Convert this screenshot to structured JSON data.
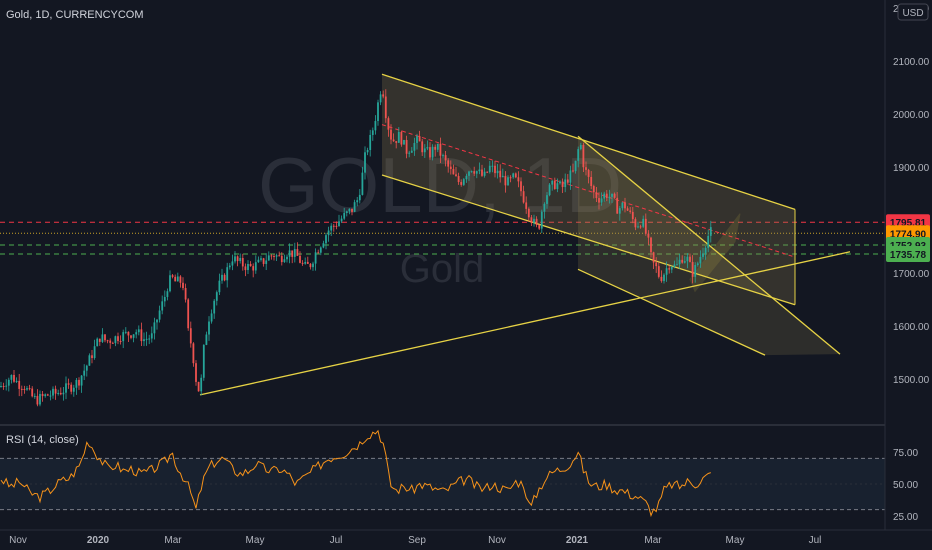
{
  "header": {
    "symbol_line": "Gold, 1D, CURRENCYCOM",
    "currency": "USD",
    "watermark_symbol": "GOLD, 1D",
    "watermark_name": "Gold"
  },
  "rsi": {
    "label": "RSI (14, close)"
  },
  "colors": {
    "background": "#131722",
    "candle_up": "#26a69a",
    "candle_down": "#ef5350",
    "drawing": "#e6d245",
    "rsi_line": "#f7931a",
    "tag_red": "#f23645",
    "tag_orange": "#ff9800",
    "tag_green": "#4caf50"
  },
  "chart_data": {
    "type": "candlestick",
    "price_axis": {
      "ticks": [
        "2200.00",
        "2100.00",
        "2000.00",
        "1900.00",
        "1800.00",
        "1700.00",
        "1600.00",
        "1500.00"
      ],
      "range": [
        1410,
        2235
      ]
    },
    "price_levels": [
      {
        "label": "1795.81",
        "value": 1795.81,
        "style": "red-dashed"
      },
      {
        "label": "1774.90",
        "value": 1774.9,
        "style": "orange-dotted"
      },
      {
        "label": "1752.93",
        "value": 1752.93,
        "style": "green-dashed"
      },
      {
        "label": "1735.78",
        "value": 1735.78,
        "style": "green-dashed"
      }
    ],
    "time_axis": [
      "Nov",
      "2020",
      "Mar",
      "May",
      "Jul",
      "Sep",
      "Nov",
      "2021",
      "Mar",
      "May",
      "Jul"
    ],
    "price_path": [
      [
        0,
        1485
      ],
      [
        5,
        1495
      ],
      [
        12,
        1505
      ],
      [
        18,
        1492
      ],
      [
        24,
        1488
      ],
      [
        30,
        1470
      ],
      [
        36,
        1460
      ],
      [
        42,
        1465
      ],
      [
        48,
        1470
      ],
      [
        55,
        1472
      ],
      [
        62,
        1478
      ],
      [
        70,
        1485
      ],
      [
        78,
        1495
      ],
      [
        88,
        1530
      ],
      [
        95,
        1560
      ],
      [
        100,
        1580
      ],
      [
        106,
        1572
      ],
      [
        112,
        1575
      ],
      [
        120,
        1582
      ],
      [
        128,
        1585
      ],
      [
        136,
        1590
      ],
      [
        144,
        1575
      ],
      [
        152,
        1580
      ],
      [
        158,
        1620
      ],
      [
        164,
        1650
      ],
      [
        168,
        1680
      ],
      [
        172,
        1690
      ],
      [
        176,
        1682
      ],
      [
        180,
        1685
      ],
      [
        184,
        1675
      ],
      [
        188,
        1590
      ],
      [
        192,
        1560
      ],
      [
        196,
        1500
      ],
      [
        200,
        1470
      ],
      [
        204,
        1560
      ],
      [
        208,
        1610
      ],
      [
        214,
        1650
      ],
      [
        220,
        1680
      ],
      [
        226,
        1700
      ],
      [
        232,
        1730
      ],
      [
        238,
        1720
      ],
      [
        244,
        1715
      ],
      [
        250,
        1710
      ],
      [
        256,
        1715
      ],
      [
        262,
        1720
      ],
      [
        268,
        1730
      ],
      [
        274,
        1735
      ],
      [
        280,
        1728
      ],
      [
        286,
        1740
      ],
      [
        292,
        1738
      ],
      [
        298,
        1730
      ],
      [
        304,
        1710
      ],
      [
        310,
        1715
      ],
      [
        316,
        1740
      ],
      [
        322,
        1760
      ],
      [
        328,
        1780
      ],
      [
        334,
        1790
      ],
      [
        340,
        1800
      ],
      [
        346,
        1810
      ],
      [
        352,
        1820
      ],
      [
        358,
        1840
      ],
      [
        362,
        1880
      ],
      [
        366,
        1930
      ],
      [
        370,
        1950
      ],
      [
        374,
        1980
      ],
      [
        378,
        2020
      ],
      [
        382,
        2060
      ],
      [
        386,
        2000
      ],
      [
        390,
        1960
      ],
      [
        394,
        1950
      ],
      [
        400,
        1960
      ],
      [
        406,
        1930
      ],
      [
        412,
        1940
      ],
      [
        418,
        1950
      ],
      [
        424,
        1930
      ],
      [
        430,
        1925
      ],
      [
        436,
        1940
      ],
      [
        442,
        1920
      ],
      [
        448,
        1900
      ],
      [
        454,
        1880
      ],
      [
        460,
        1870
      ],
      [
        466,
        1890
      ],
      [
        472,
        1900
      ],
      [
        478,
        1890
      ],
      [
        484,
        1880
      ],
      [
        490,
        1900
      ],
      [
        496,
        1890
      ],
      [
        502,
        1880
      ],
      [
        508,
        1870
      ],
      [
        514,
        1880
      ],
      [
        520,
        1860
      ],
      [
        526,
        1830
      ],
      [
        532,
        1800
      ],
      [
        538,
        1780
      ],
      [
        544,
        1840
      ],
      [
        550,
        1860
      ],
      [
        556,
        1870
      ],
      [
        562,
        1860
      ],
      [
        568,
        1880
      ],
      [
        574,
        1890
      ],
      [
        580,
        1950
      ],
      [
        584,
        1900
      ],
      [
        588,
        1880
      ],
      [
        594,
        1850
      ],
      [
        600,
        1840
      ],
      [
        606,
        1850
      ],
      [
        612,
        1840
      ],
      [
        618,
        1820
      ],
      [
        624,
        1830
      ],
      [
        630,
        1810
      ],
      [
        636,
        1790
      ],
      [
        642,
        1800
      ],
      [
        648,
        1760
      ],
      [
        652,
        1720
      ],
      [
        656,
        1710
      ],
      [
        660,
        1690
      ],
      [
        664,
        1700
      ],
      [
        670,
        1720
      ],
      [
        676,
        1710
      ],
      [
        682,
        1730
      ],
      [
        688,
        1725
      ],
      [
        692,
        1700
      ],
      [
        696,
        1710
      ],
      [
        702,
        1740
      ],
      [
        708,
        1770
      ],
      [
        712,
        1780
      ]
    ],
    "rsi_axis": [
      "75.00",
      "50.00",
      "25.00"
    ],
    "rsi_bands": [
      70,
      30
    ],
    "rsi_range": [
      20,
      95
    ],
    "rsi_path": [
      [
        0,
        55
      ],
      [
        10,
        48
      ],
      [
        20,
        52
      ],
      [
        30,
        43
      ],
      [
        40,
        40
      ],
      [
        50,
        45
      ],
      [
        60,
        52
      ],
      [
        70,
        55
      ],
      [
        80,
        65
      ],
      [
        88,
        85
      ],
      [
        95,
        75
      ],
      [
        100,
        70
      ],
      [
        108,
        62
      ],
      [
        116,
        65
      ],
      [
        124,
        60
      ],
      [
        132,
        62
      ],
      [
        140,
        58
      ],
      [
        150,
        60
      ],
      [
        158,
        64
      ],
      [
        166,
        68
      ],
      [
        172,
        75
      ],
      [
        178,
        62
      ],
      [
        184,
        55
      ],
      [
        190,
        45
      ],
      [
        196,
        30
      ],
      [
        202,
        50
      ],
      [
        208,
        62
      ],
      [
        216,
        68
      ],
      [
        224,
        70
      ],
      [
        232,
        62
      ],
      [
        240,
        58
      ],
      [
        248,
        60
      ],
      [
        256,
        66
      ],
      [
        264,
        62
      ],
      [
        272,
        60
      ],
      [
        280,
        62
      ],
      [
        288,
        58
      ],
      [
        296,
        50
      ],
      [
        304,
        55
      ],
      [
        312,
        60
      ],
      [
        320,
        65
      ],
      [
        328,
        70
      ],
      [
        336,
        72
      ],
      [
        344,
        74
      ],
      [
        352,
        78
      ],
      [
        360,
        82
      ],
      [
        366,
        88
      ],
      [
        372,
        90
      ],
      [
        378,
        92
      ],
      [
        384,
        80
      ],
      [
        390,
        50
      ],
      [
        396,
        45
      ],
      [
        404,
        48
      ],
      [
        412,
        45
      ],
      [
        420,
        50
      ],
      [
        428,
        48
      ],
      [
        436,
        46
      ],
      [
        444,
        44
      ],
      [
        452,
        48
      ],
      [
        460,
        52
      ],
      [
        468,
        54
      ],
      [
        476,
        48
      ],
      [
        484,
        46
      ],
      [
        492,
        50
      ],
      [
        500,
        47
      ],
      [
        508,
        45
      ],
      [
        516,
        52
      ],
      [
        524,
        50
      ],
      [
        530,
        30
      ],
      [
        538,
        45
      ],
      [
        546,
        55
      ],
      [
        554,
        60
      ],
      [
        562,
        62
      ],
      [
        570,
        66
      ],
      [
        578,
        75
      ],
      [
        584,
        60
      ],
      [
        590,
        50
      ],
      [
        598,
        48
      ],
      [
        606,
        50
      ],
      [
        614,
        46
      ],
      [
        622,
        45
      ],
      [
        630,
        42
      ],
      [
        638,
        40
      ],
      [
        646,
        35
      ],
      [
        652,
        28
      ],
      [
        658,
        32
      ],
      [
        664,
        45
      ],
      [
        672,
        50
      ],
      [
        680,
        48
      ],
      [
        688,
        52
      ],
      [
        696,
        50
      ],
      [
        704,
        55
      ],
      [
        712,
        58
      ]
    ],
    "drawings": [
      {
        "type": "trendline",
        "from": [
          200,
          1470
        ],
        "to": [
          850,
          1740
        ]
      },
      {
        "type": "channel-top",
        "from": [
          382,
          2075
        ],
        "to": [
          795,
          1820
        ]
      },
      {
        "type": "channel-bottom",
        "from": [
          382,
          1885
        ],
        "to": [
          795,
          1640
        ]
      },
      {
        "type": "channel-mid",
        "from": [
          382,
          1980
        ],
        "to": [
          795,
          1730
        ]
      },
      {
        "type": "pitchfork-top",
        "from": [
          578,
          1958
        ],
        "to": [
          840,
          1547
        ]
      },
      {
        "type": "pitchfork-bottom",
        "from": [
          578,
          1707
        ],
        "to": [
          765,
          1545
        ]
      },
      {
        "type": "rising-channel",
        "from": [
          690,
          1688
        ],
        "to": [
          740,
          1812
        ]
      }
    ]
  }
}
